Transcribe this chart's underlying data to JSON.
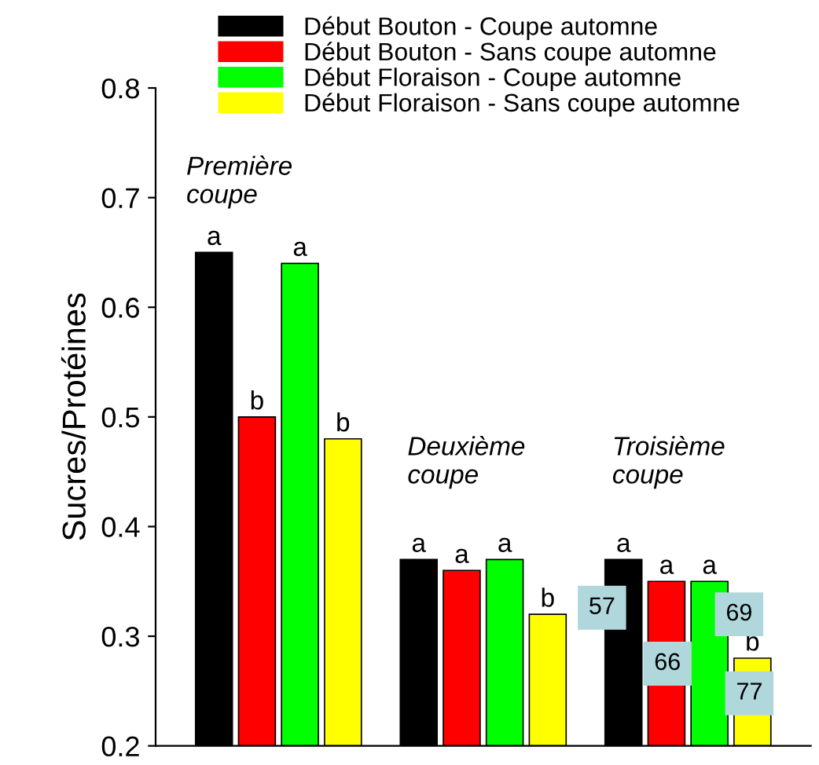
{
  "chart_data": {
    "type": "bar",
    "ylabel": "Sucres/Protéines",
    "categories": [
      null,
      null,
      null
    ],
    "ylim": [
      0.2,
      0.8
    ],
    "yticks": [
      0.2,
      0.3,
      0.4,
      0.5,
      0.6,
      0.7,
      0.8
    ],
    "grid": false,
    "legend": "top",
    "series": [
      {
        "name": "Début Bouton - Coupe automne",
        "color": "#000000",
        "values": [
          0.65,
          0.37,
          0.37
        ],
        "value_labels": [
          "a",
          "a",
          "a"
        ]
      },
      {
        "name": "Début Bouton - Sans coupe automne",
        "color": "#ff0000",
        "values": [
          0.5,
          0.36,
          0.35
        ],
        "value_labels": [
          "b",
          "a",
          "a"
        ]
      },
      {
        "name": "Début Floraison - Coupe automne",
        "color": "#00ff00",
        "values": [
          0.64,
          0.37,
          0.35
        ],
        "value_labels": [
          "a",
          "a",
          "a"
        ]
      },
      {
        "name": "Début Floraison - Sans coupe automne",
        "color": "#ffff00",
        "values": [
          0.48,
          0.32,
          0.28
        ],
        "value_labels": [
          "b",
          "b",
          "b"
        ]
      }
    ],
    "annotations": [
      "Première\ncoupe",
      "Deuxième\ncoupe",
      "Troisième\ncoupe",
      "57",
      "66",
      "69",
      "77"
    ]
  }
}
